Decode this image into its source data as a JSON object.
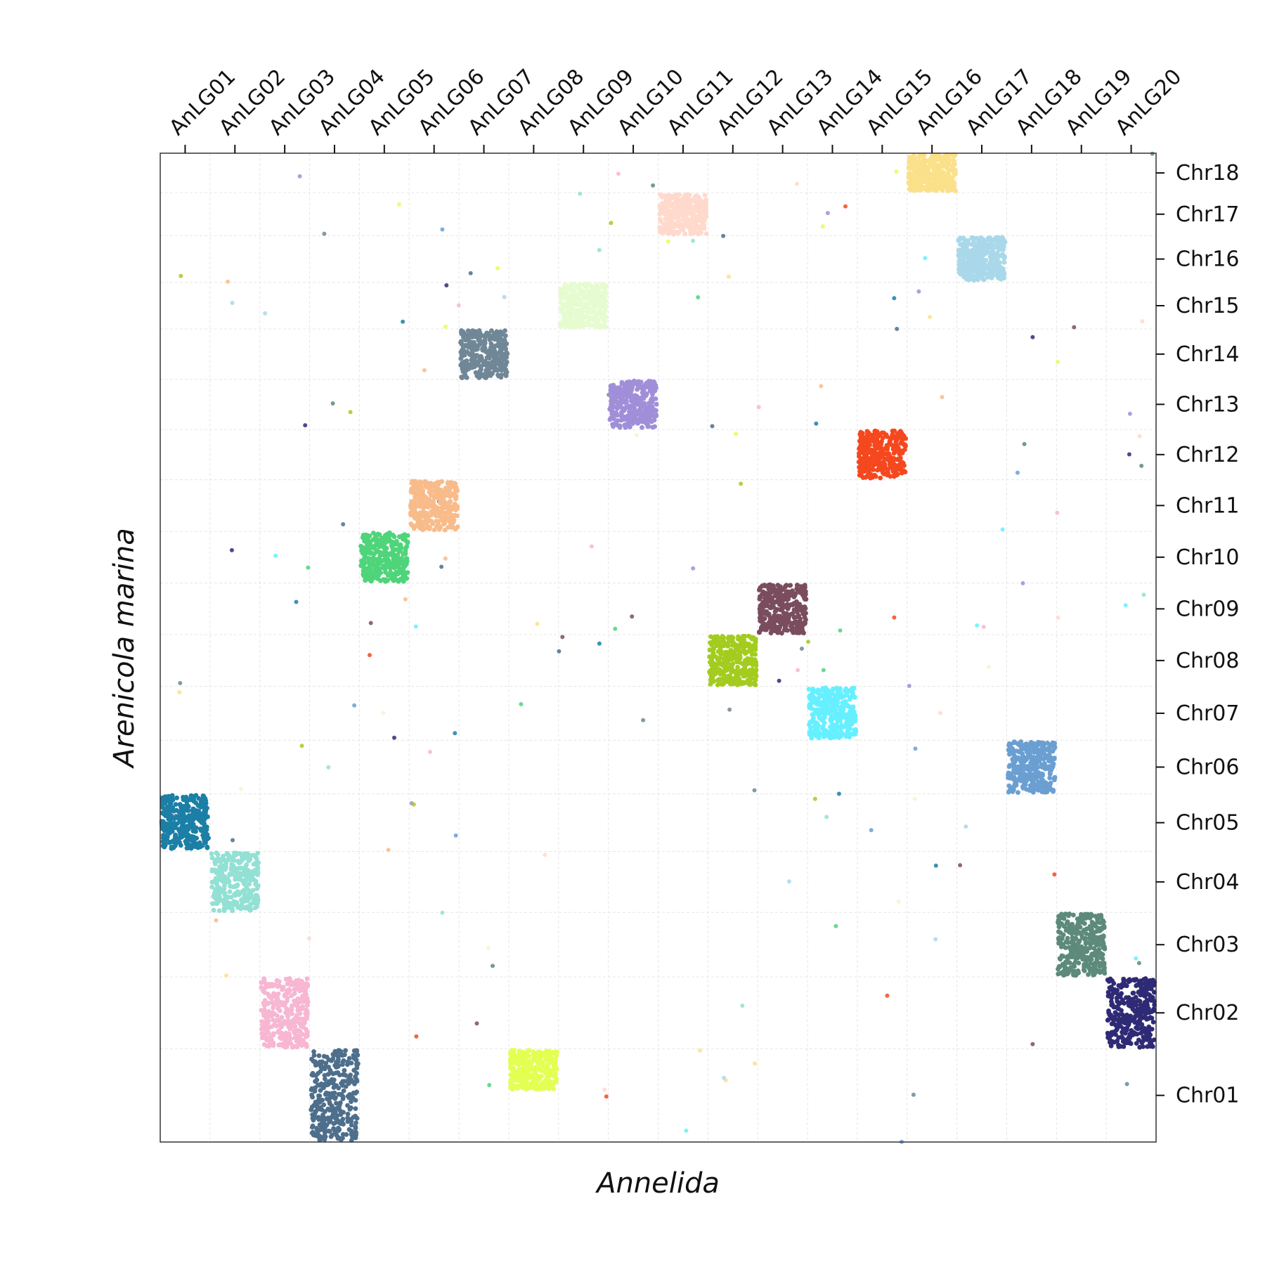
{
  "chart_data": {
    "type": "scatter",
    "title": "",
    "xlabel": "Annelida",
    "ylabel": "Arenicola marina",
    "x_categories": [
      "AnLG01",
      "AnLG02",
      "AnLG03",
      "AnLG04",
      "AnLG05",
      "AnLG06",
      "AnLG07",
      "AnLG08",
      "AnLG09",
      "AnLG10",
      "AnLG11",
      "AnLG12",
      "AnLG13",
      "AnLG14",
      "AnLG15",
      "AnLG16",
      "AnLG17",
      "AnLG18",
      "AnLG19",
      "AnLG20"
    ],
    "y_categories": [
      "Chr01",
      "Chr02",
      "Chr03",
      "Chr04",
      "Chr05",
      "Chr06",
      "Chr07",
      "Chr08",
      "Chr09",
      "Chr10",
      "Chr11",
      "Chr12",
      "Chr13",
      "Chr14",
      "Chr15",
      "Chr16",
      "Chr17",
      "Chr18"
    ],
    "y_relative_sizes": [
      1.3,
      1.0,
      0.9,
      0.85,
      0.8,
      0.75,
      0.75,
      0.72,
      0.72,
      0.72,
      0.72,
      0.7,
      0.7,
      0.7,
      0.65,
      0.65,
      0.6,
      0.55
    ],
    "grid": true,
    "legend": "none",
    "blocks": [
      {
        "x": "AnLG01",
        "y": "Chr05",
        "color": "#1b7fa6"
      },
      {
        "x": "AnLG02",
        "y": "Chr04",
        "color": "#93e0d4"
      },
      {
        "x": "AnLG03",
        "y": "Chr02",
        "color": "#f7b6d2"
      },
      {
        "x": "AnLG04",
        "y": "Chr01",
        "color": "#4e6f8c"
      },
      {
        "x": "AnLG05",
        "y": "Chr10",
        "color": "#4fd47a"
      },
      {
        "x": "AnLG06",
        "y": "Chr11",
        "color": "#f8bb8a"
      },
      {
        "x": "AnLG07",
        "y": "Chr14",
        "color": "#708797"
      },
      {
        "x": "AnLG08",
        "y": "Chr01",
        "color": "#e3ff52",
        "offset": -0.55
      },
      {
        "x": "AnLG09",
        "y": "Chr15",
        "color": "#e6fcd0"
      },
      {
        "x": "AnLG10",
        "y": "Chr13",
        "color": "#a08fd8"
      },
      {
        "x": "AnLG11",
        "y": "Chr17",
        "color": "#ffd9cc"
      },
      {
        "x": "AnLG12",
        "y": "Chr08",
        "color": "#a3cc1f"
      },
      {
        "x": "AnLG13",
        "y": "Chr09",
        "color": "#7a4d5e"
      },
      {
        "x": "AnLG14",
        "y": "Chr07",
        "color": "#66f0ff"
      },
      {
        "x": "AnLG15",
        "y": "Chr12",
        "color": "#f5481f"
      },
      {
        "x": "AnLG16",
        "y": "Chr18",
        "color": "#fbe08a"
      },
      {
        "x": "AnLG17",
        "y": "Chr16",
        "color": "#a9d8ea"
      },
      {
        "x": "AnLG18",
        "y": "Chr06",
        "color": "#6b9fd2"
      },
      {
        "x": "AnLG19",
        "y": "Chr03",
        "color": "#5d8a7a"
      },
      {
        "x": "AnLG20",
        "y": "Chr02",
        "color": "#2f2a75"
      }
    ]
  }
}
